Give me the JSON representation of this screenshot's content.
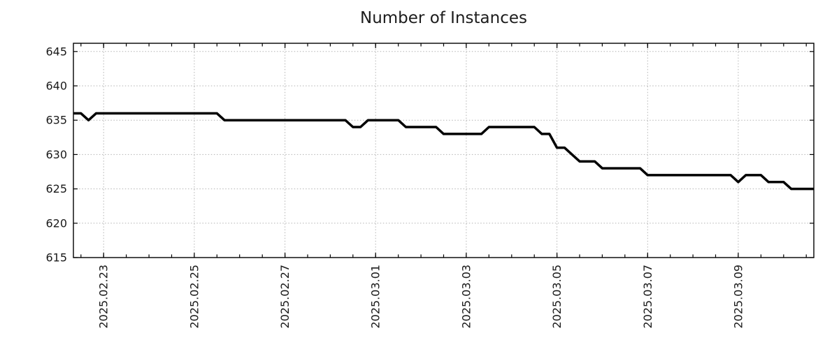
{
  "page": {
    "background": "#ffffff"
  },
  "chart_data": {
    "type": "line",
    "title": "Number of Instances",
    "xlabel": "",
    "ylabel": "",
    "grid": true,
    "legend": false,
    "line_color": "#000000",
    "grid_color": "#b3b3b3",
    "frame_color": "#000000",
    "text_color": "#1a1a1a",
    "y_axis": {
      "min": 615,
      "max": 646.2,
      "ticks": [
        615,
        620,
        625,
        630,
        635,
        640,
        645
      ]
    },
    "x_axis": {
      "unit": "hours since 2025-02-22 08:00",
      "t_min": 0,
      "t_max": 392,
      "range_start": "2025.02.22 08:00",
      "range_end": "2025.03.10 16:00",
      "minor_tick_start": 4,
      "minor_tick_step_hours": 12,
      "major_ticks": [
        {
          "t": 16,
          "label": "2025.02.23"
        },
        {
          "t": 64,
          "label": "2025.02.25"
        },
        {
          "t": 112,
          "label": "2025.02.27"
        },
        {
          "t": 160,
          "label": "2025.03.01"
        },
        {
          "t": 208,
          "label": "2025.03.03"
        },
        {
          "t": 256,
          "label": "2025.03.05"
        },
        {
          "t": 304,
          "label": "2025.03.07"
        },
        {
          "t": 352,
          "label": "2025.03.09"
        }
      ]
    },
    "series": [
      {
        "name": "instances",
        "points": [
          {
            "time": "2025.02.22 08:00",
            "t": 0,
            "v": 636
          },
          {
            "time": "2025.02.22 12:00",
            "t": 4,
            "v": 636
          },
          {
            "time": "2025.02.22 16:00",
            "t": 8,
            "v": 635
          },
          {
            "time": "2025.02.22 20:00",
            "t": 12,
            "v": 636
          },
          {
            "time": "2025.02.25 12:00",
            "t": 76,
            "v": 636
          },
          {
            "time": "2025.02.25 16:00",
            "t": 80,
            "v": 635
          },
          {
            "time": "2025.02.28 08:00",
            "t": 144,
            "v": 635
          },
          {
            "time": "2025.02.28 12:00",
            "t": 148,
            "v": 634
          },
          {
            "time": "2025.02.28 16:00",
            "t": 152,
            "v": 634
          },
          {
            "time": "2025.02.28 20:00",
            "t": 156,
            "v": 635
          },
          {
            "time": "2025.03.01 12:00",
            "t": 172,
            "v": 635
          },
          {
            "time": "2025.03.01 16:00",
            "t": 176,
            "v": 634
          },
          {
            "time": "2025.03.02 08:00",
            "t": 192,
            "v": 634
          },
          {
            "time": "2025.03.02 12:00",
            "t": 196,
            "v": 633
          },
          {
            "time": "2025.03.03 08:00",
            "t": 216,
            "v": 633
          },
          {
            "time": "2025.03.03 12:00",
            "t": 220,
            "v": 634
          },
          {
            "time": "2025.03.04 12:00",
            "t": 244,
            "v": 634
          },
          {
            "time": "2025.03.04 16:00",
            "t": 248,
            "v": 633
          },
          {
            "time": "2025.03.04 20:00",
            "t": 252,
            "v": 633
          },
          {
            "time": "2025.03.05 00:00",
            "t": 256,
            "v": 631
          },
          {
            "time": "2025.03.05 04:00",
            "t": 260,
            "v": 631
          },
          {
            "time": "2025.03.05 08:00",
            "t": 264,
            "v": 630
          },
          {
            "time": "2025.03.05 12:00",
            "t": 268,
            "v": 629
          },
          {
            "time": "2025.03.05 20:00",
            "t": 276,
            "v": 629
          },
          {
            "time": "2025.03.06 00:00",
            "t": 280,
            "v": 628
          },
          {
            "time": "2025.03.06 20:00",
            "t": 300,
            "v": 628
          },
          {
            "time": "2025.03.07 00:00",
            "t": 304,
            "v": 627
          },
          {
            "time": "2025.03.08 20:00",
            "t": 348,
            "v": 627
          },
          {
            "time": "2025.03.09 00:00",
            "t": 352,
            "v": 626
          },
          {
            "time": "2025.03.09 04:00",
            "t": 356,
            "v": 627
          },
          {
            "time": "2025.03.09 12:00",
            "t": 364,
            "v": 627
          },
          {
            "time": "2025.03.09 16:00",
            "t": 368,
            "v": 626
          },
          {
            "time": "2025.03.10 00:00",
            "t": 376,
            "v": 626
          },
          {
            "time": "2025.03.10 04:00",
            "t": 380,
            "v": 625
          },
          {
            "time": "2025.03.10 16:00",
            "t": 392,
            "v": 625
          }
        ]
      }
    ]
  }
}
